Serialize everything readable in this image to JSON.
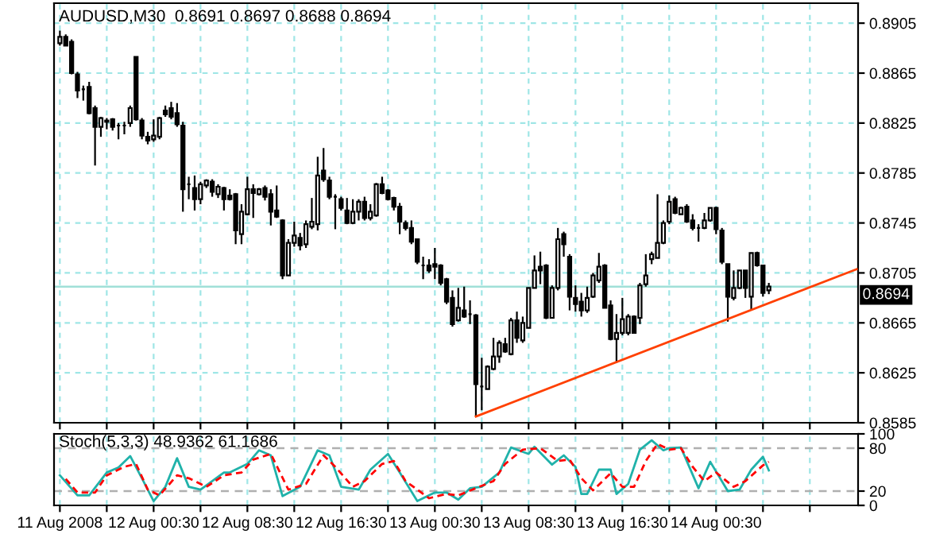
{
  "chart_data": [
    {
      "type": "candlestick",
      "title": "AUDUSD,M30  0.8691 0.8697 0.8688 0.8694",
      "series": [
        {
          "type": "candlestick",
          "color": "#000000",
          "x": [
            "2008-08-11T16:30",
            "2008-08-11T17:00",
            "2008-08-11T17:30",
            "2008-08-11T18:00",
            "2008-08-11T18:30",
            "2008-08-11T19:00",
            "2008-08-11T19:30",
            "2008-08-11T20:00",
            "2008-08-11T20:30",
            "2008-08-11T21:00",
            "2008-08-11T21:30",
            "2008-08-11T22:00",
            "2008-08-11T22:30",
            "2008-08-11T23:00",
            "2008-08-11T23:30",
            "2008-08-12T00:00",
            "2008-08-12T00:30",
            "2008-08-12T01:00",
            "2008-08-12T01:30",
            "2008-08-12T02:00",
            "2008-08-12T02:30",
            "2008-08-12T03:00",
            "2008-08-12T03:30",
            "2008-08-12T04:00",
            "2008-08-12T04:30",
            "2008-08-12T05:00",
            "2008-08-12T05:30",
            "2008-08-12T06:00",
            "2008-08-12T06:30",
            "2008-08-12T07:00",
            "2008-08-12T07:30",
            "2008-08-12T08:00",
            "2008-08-12T08:30",
            "2008-08-12T09:00",
            "2008-08-12T09:30",
            "2008-08-12T10:00",
            "2008-08-12T10:30",
            "2008-08-12T11:00",
            "2008-08-12T11:30",
            "2008-08-12T12:00",
            "2008-08-12T12:30",
            "2008-08-12T13:00",
            "2008-08-12T13:30",
            "2008-08-12T14:00",
            "2008-08-12T14:30",
            "2008-08-12T15:00",
            "2008-08-12T15:30",
            "2008-08-12T16:00",
            "2008-08-12T16:30",
            "2008-08-12T17:00",
            "2008-08-12T17:30",
            "2008-08-12T18:00",
            "2008-08-12T18:30",
            "2008-08-12T19:00",
            "2008-08-12T19:30",
            "2008-08-12T20:00",
            "2008-08-12T20:30",
            "2008-08-12T21:00",
            "2008-08-12T21:30",
            "2008-08-12T22:00",
            "2008-08-12T22:30",
            "2008-08-12T23:00",
            "2008-08-12T23:30",
            "2008-08-13T00:00",
            "2008-08-13T00:30",
            "2008-08-13T01:00",
            "2008-08-13T01:30",
            "2008-08-13T02:00",
            "2008-08-13T02:30",
            "2008-08-13T03:00",
            "2008-08-13T03:30",
            "2008-08-13T04:00",
            "2008-08-13T04:30",
            "2008-08-13T05:00",
            "2008-08-13T05:30",
            "2008-08-13T06:00",
            "2008-08-13T06:30",
            "2008-08-13T07:00",
            "2008-08-13T07:30",
            "2008-08-13T08:00",
            "2008-08-13T08:30",
            "2008-08-13T09:00",
            "2008-08-13T09:30",
            "2008-08-13T10:00",
            "2008-08-13T10:30",
            "2008-08-13T11:00",
            "2008-08-13T11:30",
            "2008-08-13T12:00",
            "2008-08-13T12:30",
            "2008-08-13T13:00",
            "2008-08-13T13:30",
            "2008-08-13T14:00",
            "2008-08-13T14:30",
            "2008-08-13T15:00",
            "2008-08-13T15:30",
            "2008-08-13T16:00",
            "2008-08-13T16:30",
            "2008-08-13T17:00",
            "2008-08-13T17:30",
            "2008-08-13T18:00",
            "2008-08-13T18:30",
            "2008-08-13T19:00",
            "2008-08-13T19:30",
            "2008-08-13T20:00",
            "2008-08-13T20:30",
            "2008-08-13T21:00",
            "2008-08-13T21:30",
            "2008-08-13T22:00",
            "2008-08-13T22:30",
            "2008-08-13T23:00",
            "2008-08-13T23:30",
            "2008-08-14T00:00",
            "2008-08-14T00:30",
            "2008-08-14T01:00",
            "2008-08-14T01:30",
            "2008-08-14T02:00",
            "2008-08-14T02:30",
            "2008-08-14T03:00",
            "2008-08-14T03:30",
            "2008-08-14T04:00",
            "2008-08-14T04:30",
            "2008-08-14T05:00"
          ],
          "ohlc": [
            [
              0.8889,
              0.8899,
              0.8887,
              0.8894
            ],
            [
              0.8894,
              0.8896,
              0.8887,
              0.8887
            ],
            [
              0.889,
              0.8892,
              0.8864,
              0.8865
            ],
            [
              0.8864,
              0.8866,
              0.8845,
              0.8851
            ],
            [
              0.8852,
              0.8855,
              0.8843,
              0.8852
            ],
            [
              0.8854,
              0.8858,
              0.8832,
              0.8833
            ],
            [
              0.8837,
              0.8839,
              0.8791,
              0.8822
            ],
            [
              0.8822,
              0.883,
              0.8814,
              0.8829
            ],
            [
              0.8827,
              0.8829,
              0.882,
              0.8826
            ],
            [
              0.8828,
              0.8829,
              0.8819,
              0.8822
            ],
            [
              0.8823,
              0.8825,
              0.8812,
              0.8823
            ],
            [
              0.8823,
              0.8826,
              0.8816,
              0.8823
            ],
            [
              0.8825,
              0.8839,
              0.8822,
              0.8837
            ],
            [
              0.8878,
              0.8878,
              0.8827,
              0.8828
            ],
            [
              0.8827,
              0.8829,
              0.8812,
              0.8815
            ],
            [
              0.8814,
              0.8818,
              0.8808,
              0.8811
            ],
            [
              0.8812,
              0.8828,
              0.881,
              0.8815
            ],
            [
              0.8814,
              0.883,
              0.8812,
              0.8829
            ],
            [
              0.8835,
              0.8839,
              0.883,
              0.8832
            ],
            [
              0.8837,
              0.8842,
              0.8828,
              0.883
            ],
            [
              0.8833,
              0.8841,
              0.8822,
              0.8824
            ],
            [
              0.8823,
              0.8826,
              0.8754,
              0.8772
            ],
            [
              0.8776,
              0.8782,
              0.8764,
              0.8776
            ],
            [
              0.8773,
              0.8783,
              0.8755,
              0.8764
            ],
            [
              0.8764,
              0.8778,
              0.876,
              0.8776
            ],
            [
              0.8775,
              0.878,
              0.8773,
              0.8779
            ],
            [
              0.8778,
              0.878,
              0.8766,
              0.877
            ],
            [
              0.8768,
              0.8776,
              0.8765,
              0.8774
            ],
            [
              0.8773,
              0.8774,
              0.8755,
              0.8764
            ],
            [
              0.8767,
              0.8772,
              0.8763,
              0.8764
            ],
            [
              0.8768,
              0.8769,
              0.8728,
              0.8739
            ],
            [
              0.8736,
              0.876,
              0.8728,
              0.8754
            ],
            [
              0.8752,
              0.8782,
              0.8751,
              0.8772
            ],
            [
              0.8772,
              0.8776,
              0.8749,
              0.8769
            ],
            [
              0.8768,
              0.8773,
              0.8767,
              0.8772
            ],
            [
              0.8773,
              0.8775,
              0.8763,
              0.8766
            ],
            [
              0.8768,
              0.8772,
              0.8743,
              0.8754
            ],
            [
              0.8755,
              0.8775,
              0.8749,
              0.875
            ],
            [
              0.8747,
              0.8748,
              0.87,
              0.8703
            ],
            [
              0.8703,
              0.8732,
              0.8703,
              0.8729
            ],
            [
              0.8729,
              0.8746,
              0.8726,
              0.8735
            ],
            [
              0.8733,
              0.8737,
              0.8723,
              0.8727
            ],
            [
              0.8728,
              0.8747,
              0.8725,
              0.8744
            ],
            [
              0.8742,
              0.8765,
              0.874,
              0.8746
            ],
            [
              0.8744,
              0.8798,
              0.8739,
              0.8783
            ],
            [
              0.8787,
              0.8805,
              0.8778,
              0.878
            ],
            [
              0.8779,
              0.8782,
              0.8764,
              0.8766
            ],
            [
              0.8766,
              0.8768,
              0.874,
              0.8766
            ],
            [
              0.8764,
              0.8766,
              0.8755,
              0.8757
            ],
            [
              0.8755,
              0.8765,
              0.8744,
              0.8745
            ],
            [
              0.8745,
              0.8764,
              0.8744,
              0.8754
            ],
            [
              0.8754,
              0.8764,
              0.8747,
              0.8762
            ],
            [
              0.8762,
              0.8766,
              0.8747,
              0.8749
            ],
            [
              0.8749,
              0.876,
              0.8747,
              0.8754
            ],
            [
              0.8751,
              0.8777,
              0.875,
              0.8776
            ],
            [
              0.8776,
              0.8782,
              0.8768,
              0.8769
            ],
            [
              0.8771,
              0.8772,
              0.8763,
              0.8764
            ],
            [
              0.8765,
              0.8766,
              0.8755,
              0.8758
            ],
            [
              0.8758,
              0.8761,
              0.8736,
              0.8746
            ],
            [
              0.8745,
              0.8747,
              0.8739,
              0.8741
            ],
            [
              0.8741,
              0.8747,
              0.8728,
              0.873
            ],
            [
              0.8732,
              0.8732,
              0.8712,
              0.8714
            ],
            [
              0.8711,
              0.8718,
              0.87,
              0.8711
            ],
            [
              0.8711,
              0.8716,
              0.8705,
              0.8707
            ],
            [
              0.8712,
              0.8725,
              0.87,
              0.871
            ],
            [
              0.8711,
              0.8712,
              0.8695,
              0.8697
            ],
            [
              0.87,
              0.8701,
              0.868,
              0.8682
            ],
            [
              0.8685,
              0.8691,
              0.8662,
              0.8664
            ],
            [
              0.8667,
              0.8693,
              0.8666,
              0.8677
            ],
            [
              0.8675,
              0.8694,
              0.8669,
              0.867
            ],
            [
              0.8672,
              0.8683,
              0.8664,
              0.8672
            ],
            [
              0.8671,
              0.8672,
              0.859,
              0.8616
            ],
            [
              0.8614,
              0.8637,
              0.8595,
              0.8614
            ],
            [
              0.8612,
              0.8631,
              0.8612,
              0.863
            ],
            [
              0.8628,
              0.8653,
              0.8627,
              0.8638
            ],
            [
              0.8638,
              0.8651,
              0.8633,
              0.8649
            ],
            [
              0.8648,
              0.8653,
              0.8641,
              0.8642
            ],
            [
              0.864,
              0.8669,
              0.8639,
              0.8667
            ],
            [
              0.8667,
              0.8674,
              0.8649,
              0.8653
            ],
            [
              0.8651,
              0.867,
              0.8649,
              0.8665
            ],
            [
              0.8661,
              0.8693,
              0.8661,
              0.8693
            ],
            [
              0.8693,
              0.8719,
              0.8693,
              0.8707
            ],
            [
              0.871,
              0.8722,
              0.8696,
              0.8707
            ],
            [
              0.8711,
              0.8712,
              0.8668,
              0.8669
            ],
            [
              0.8669,
              0.8695,
              0.8669,
              0.8693
            ],
            [
              0.8693,
              0.8741,
              0.8691,
              0.8732
            ],
            [
              0.8736,
              0.8738,
              0.8718,
              0.8728
            ],
            [
              0.8718,
              0.872,
              0.8675,
              0.8686
            ],
            [
              0.8685,
              0.8695,
              0.8674,
              0.868
            ],
            [
              0.8682,
              0.8689,
              0.867,
              0.8675
            ],
            [
              0.8675,
              0.8694,
              0.8673,
              0.8685
            ],
            [
              0.8686,
              0.8705,
              0.8685,
              0.8703
            ],
            [
              0.8699,
              0.8721,
              0.8697,
              0.871
            ],
            [
              0.8711,
              0.8712,
              0.8677,
              0.8677
            ],
            [
              0.8679,
              0.8683,
              0.8651,
              0.8652
            ],
            [
              0.8652,
              0.8672,
              0.8633,
              0.8657
            ],
            [
              0.8657,
              0.8685,
              0.8655,
              0.8668
            ],
            [
              0.8657,
              0.8672,
              0.8655,
              0.867
            ],
            [
              0.867,
              0.8671,
              0.8657,
              0.8657
            ],
            [
              0.8669,
              0.8697,
              0.8664,
              0.8695
            ],
            [
              0.8696,
              0.872,
              0.8694,
              0.8703
            ],
            [
              0.8716,
              0.8722,
              0.8712,
              0.872
            ],
            [
              0.8717,
              0.8768,
              0.8717,
              0.8729
            ],
            [
              0.8729,
              0.8747,
              0.8728,
              0.8745
            ],
            [
              0.8746,
              0.8767,
              0.8744,
              0.8762
            ],
            [
              0.8764,
              0.8766,
              0.8752,
              0.8753
            ],
            [
              0.8752,
              0.8758,
              0.8752,
              0.8757
            ],
            [
              0.8758,
              0.876,
              0.8745,
              0.8746
            ],
            [
              0.8747,
              0.8752,
              0.8739,
              0.8741
            ],
            [
              0.8741,
              0.8744,
              0.873,
              0.8741
            ],
            [
              0.8741,
              0.8753,
              0.874,
              0.8747
            ],
            [
              0.8747,
              0.8757,
              0.8746,
              0.8757
            ],
            [
              0.8757,
              0.8758,
              0.8736,
              0.874
            ],
            [
              0.8739,
              0.8741,
              0.8712,
              0.8714
            ],
            [
              0.8712,
              0.8712,
              0.8666,
              0.8686
            ],
            [
              0.8685,
              0.8707,
              0.8683,
              0.8693
            ],
            [
              0.8693,
              0.8707,
              0.8692,
              0.8707
            ],
            [
              0.8707,
              0.8707,
              0.8685,
              0.8693
            ],
            [
              0.8686,
              0.8721,
              0.8675,
              0.8721
            ],
            [
              0.8721,
              0.8722,
              0.871,
              0.8711
            ],
            [
              0.8711,
              0.8711,
              0.8686,
              0.8689
            ],
            [
              0.8691,
              0.8697,
              0.8688,
              0.8694
            ]
          ]
        },
        {
          "type": "line",
          "color": "#ff4000",
          "x": [
            "2008-08-13T04:00",
            "2008-08-14T12:30"
          ],
          "values": [
            0.859,
            0.8708
          ]
        }
      ],
      "xlim": [
        "2008-08-11T16:00",
        "2008-08-14T12:37"
      ],
      "xticks": [
        {
          "value": "2008-08-11T16:30",
          "label": null
        },
        {
          "value": "2008-08-11T20:30",
          "label": null
        },
        {
          "value": "2008-08-12T00:30",
          "label": null
        },
        {
          "value": "2008-08-12T04:30",
          "label": null
        },
        {
          "value": "2008-08-12T08:30",
          "label": null
        },
        {
          "value": "2008-08-12T12:30",
          "label": null
        },
        {
          "value": "2008-08-12T16:30",
          "label": null
        },
        {
          "value": "2008-08-12T20:30",
          "label": null
        },
        {
          "value": "2008-08-13T00:30",
          "label": null
        },
        {
          "value": "2008-08-13T04:30",
          "label": null
        },
        {
          "value": "2008-08-13T08:30",
          "label": null
        },
        {
          "value": "2008-08-13T12:30",
          "label": null
        },
        {
          "value": "2008-08-13T16:30",
          "label": null
        },
        {
          "value": "2008-08-13T20:30",
          "label": null
        },
        {
          "value": "2008-08-14T00:30",
          "label": null
        },
        {
          "value": "2008-08-14T04:30",
          "label": null
        },
        {
          "value": "2008-08-14T08:30",
          "label": null
        }
      ],
      "ylim": [
        0.8585,
        0.8921
      ],
      "yticks": [
        0.8585,
        0.8625,
        0.8665,
        0.8705,
        0.8745,
        0.8785,
        0.8825,
        0.8865,
        0.8905
      ],
      "ref_lines": [
        {
          "axis": "y",
          "value": 0.8694,
          "label": "0.8694",
          "color": "#a0e0d8"
        }
      ],
      "grid": true,
      "tick_labels": "y"
    },
    {
      "type": "line",
      "title": "Stoch(5,3,3) 48.9362 61.1686",
      "series": [
        {
          "color": "#20b2aa",
          "line_style": "solid",
          "x": [
            "2008-08-11T16:30",
            "2008-08-11T18:00",
            "2008-08-11T19:00",
            "2008-08-11T20:30",
            "2008-08-11T21:30",
            "2008-08-11T22:30",
            "2008-08-11T23:30",
            "2008-08-12T00:30",
            "2008-08-12T01:30",
            "2008-08-12T02:30",
            "2008-08-12T03:30",
            "2008-08-12T04:30",
            "2008-08-12T06:30",
            "2008-08-12T07:00",
            "2008-08-12T08:30",
            "2008-08-12T09:30",
            "2008-08-12T10:30",
            "2008-08-12T11:30",
            "2008-08-12T13:00",
            "2008-08-12T14:30",
            "2008-08-12T15:30",
            "2008-08-12T16:30",
            "2008-08-12T18:00",
            "2008-08-12T19:00",
            "2008-08-12T20:30",
            "2008-08-12T21:30",
            "2008-08-12T23:00",
            "2008-08-13T00:30",
            "2008-08-13T01:30",
            "2008-08-13T02:30",
            "2008-08-13T03:30",
            "2008-08-13T04:30",
            "2008-08-13T06:00",
            "2008-08-13T07:00",
            "2008-08-13T08:30",
            "2008-08-13T09:00",
            "2008-08-13T10:30",
            "2008-08-13T11:30",
            "2008-08-13T12:30",
            "2008-08-13T13:00",
            "2008-08-13T13:30",
            "2008-08-13T14:30",
            "2008-08-13T15:30",
            "2008-08-13T16:00",
            "2008-08-13T17:00",
            "2008-08-13T18:00",
            "2008-08-13T19:00",
            "2008-08-13T20:00",
            "2008-08-13T20:30",
            "2008-08-13T21:30",
            "2008-08-13T23:00",
            "2008-08-14T00:00",
            "2008-08-14T01:30",
            "2008-08-14T02:30",
            "2008-08-14T03:30",
            "2008-08-14T04:30",
            "2008-08-14T05:00"
          ],
          "values": [
            42,
            14,
            14,
            46,
            53,
            69,
            38,
            6,
            26,
            66,
            26,
            22,
            46,
            46,
            58,
            77,
            70,
            13,
            26,
            77,
            70,
            26,
            22,
            50,
            72,
            46,
            6,
            18,
            18,
            8,
            24,
            26,
            46,
            81,
            72,
            82,
            57,
            70,
            54,
            16,
            16,
            50,
            50,
            16,
            30,
            78,
            91,
            77,
            80,
            81,
            24,
            61,
            20,
            22,
            50,
            68,
            49
          ]
        },
        {
          "color": "#ff0000",
          "line_style": "dashed",
          "x": [
            "2008-08-11T17:00",
            "2008-08-11T18:00",
            "2008-08-11T19:30",
            "2008-08-11T20:30",
            "2008-08-11T22:00",
            "2008-08-11T23:00",
            "2008-08-12T00:00",
            "2008-08-12T01:00",
            "2008-08-12T02:30",
            "2008-08-12T03:30",
            "2008-08-12T05:00",
            "2008-08-12T06:30",
            "2008-08-12T08:00",
            "2008-08-12T09:00",
            "2008-08-12T10:30",
            "2008-08-12T12:00",
            "2008-08-12T13:30",
            "2008-08-12T15:00",
            "2008-08-12T16:00",
            "2008-08-12T17:30",
            "2008-08-12T18:30",
            "2008-08-12T20:00",
            "2008-08-12T21:00",
            "2008-08-12T22:00",
            "2008-08-13T00:00",
            "2008-08-13T01:30",
            "2008-08-13T02:30",
            "2008-08-13T05:30",
            "2008-08-13T06:30",
            "2008-08-13T08:00",
            "2008-08-13T09:30",
            "2008-08-13T11:00",
            "2008-08-13T12:00",
            "2008-08-13T13:00",
            "2008-08-13T14:00",
            "2008-08-13T15:30",
            "2008-08-13T16:30",
            "2008-08-13T17:30",
            "2008-08-13T18:30",
            "2008-08-13T19:30",
            "2008-08-13T20:30",
            "2008-08-13T21:30",
            "2008-08-13T22:30",
            "2008-08-13T23:30",
            "2008-08-14T00:30",
            "2008-08-14T02:00",
            "2008-08-14T03:00",
            "2008-08-14T04:30",
            "2008-08-14T05:00"
          ],
          "values": [
            37,
            18,
            18,
            42,
            54,
            58,
            22,
            14,
            42,
            38,
            26,
            42,
            46,
            64,
            72,
            22,
            30,
            70,
            54,
            26,
            34,
            58,
            62,
            34,
            10,
            16,
            14,
            34,
            58,
            78,
            80,
            62,
            64,
            38,
            21,
            45,
            26,
            26,
            62,
            86,
            78,
            80,
            54,
            34,
            46,
            26,
            34,
            56,
            61
          ]
        }
      ],
      "xlim": [
        "2008-08-11T16:00",
        "2008-08-14T12:37"
      ],
      "xticks": [
        {
          "value": "2008-08-11T16:30",
          "label": "11 Aug 2008"
        },
        {
          "value": "2008-08-11T20:30",
          "label": null
        },
        {
          "value": "2008-08-12T00:30",
          "label": "12 Aug 00:30"
        },
        {
          "value": "2008-08-12T04:30",
          "label": null
        },
        {
          "value": "2008-08-12T08:30",
          "label": "12 Aug 08:30"
        },
        {
          "value": "2008-08-12T12:30",
          "label": null
        },
        {
          "value": "2008-08-12T16:30",
          "label": "12 Aug 16:30"
        },
        {
          "value": "2008-08-12T20:30",
          "label": null
        },
        {
          "value": "2008-08-13T00:30",
          "label": "13 Aug 00:30"
        },
        {
          "value": "2008-08-13T04:30",
          "label": null
        },
        {
          "value": "2008-08-13T08:30",
          "label": "13 Aug 08:30"
        },
        {
          "value": "2008-08-13T12:30",
          "label": null
        },
        {
          "value": "2008-08-13T16:30",
          "label": "13 Aug 16:30"
        },
        {
          "value": "2008-08-13T20:30",
          "label": null
        },
        {
          "value": "2008-08-14T00:30",
          "label": "14 Aug 00:30"
        },
        {
          "value": "2008-08-14T04:30",
          "label": null
        },
        {
          "value": "2008-08-14T08:30",
          "label": null
        }
      ],
      "ylim": [
        0,
        100
      ],
      "yticks": [
        0,
        20,
        80,
        100
      ],
      "ref_lines": [
        {
          "axis": "y",
          "value": 80,
          "color": "#b0b0b0"
        },
        {
          "axis": "y",
          "value": 20,
          "color": "#b0b0b0"
        }
      ],
      "grid": "x"
    }
  ]
}
